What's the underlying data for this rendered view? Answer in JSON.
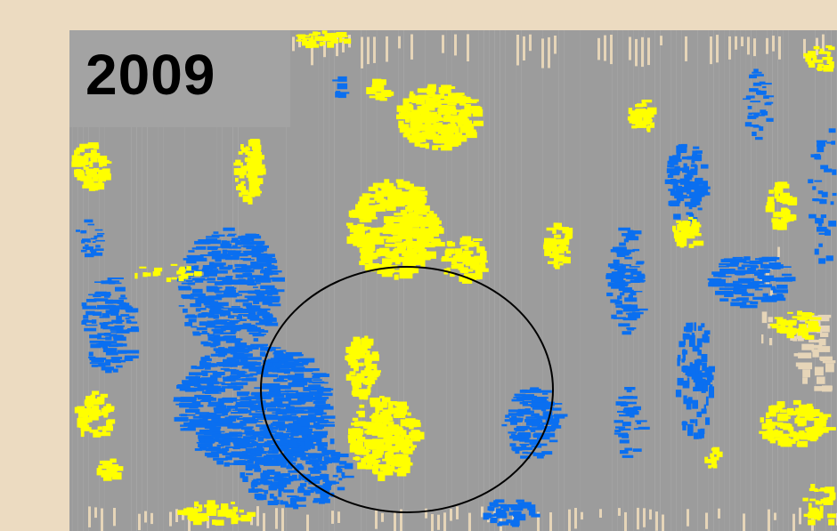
{
  "year_label": "2009",
  "colors": {
    "page_background": "#ecdbc1",
    "map_background": "#9c9c9c",
    "label_background": "#a3a3a3",
    "yellow_anomaly": "#ffff00",
    "blue_anomaly": "#0a6ff0",
    "beige_gap": "#e6d5b8",
    "highlight_circle": "#000000"
  }
}
